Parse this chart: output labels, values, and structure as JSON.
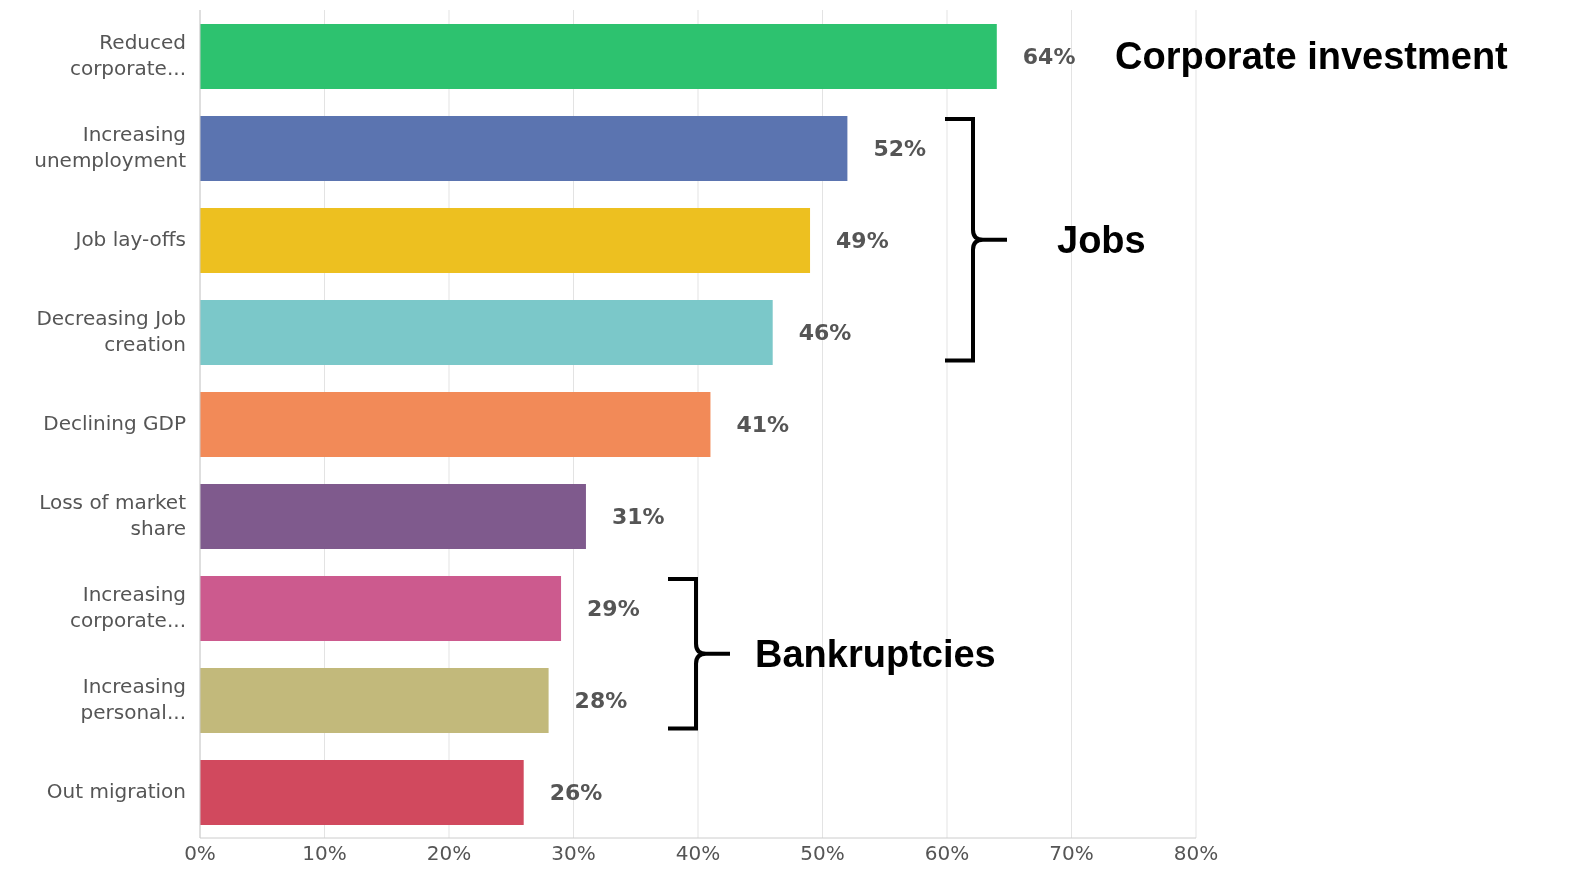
{
  "chart_data": {
    "type": "bar",
    "orientation": "horizontal",
    "categories": [
      "Reduced corporate...",
      "Increasing unemployment",
      "Job lay-offs",
      "Decreasing Job creation",
      "Declining GDP",
      "Loss of market share",
      "Increasing corporate...",
      "Increasing personal...",
      "Out migration"
    ],
    "values": [
      64,
      52,
      49,
      46,
      41,
      31,
      29,
      28,
      26
    ],
    "colors": [
      "#2dc26f",
      "#5b74b0",
      "#edc020",
      "#7bc8c9",
      "#f28a58",
      "#7f5a8d",
      "#cc5a8e",
      "#c2b97b",
      "#d1495e"
    ],
    "value_labels": [
      "64%",
      "52%",
      "49%",
      "46%",
      "41%",
      "31%",
      "29%",
      "28%",
      "26%"
    ],
    "xlim": [
      0,
      80
    ],
    "xticks": [
      {
        "value": 0,
        "label": "0%"
      },
      {
        "value": 10,
        "label": "10%"
      },
      {
        "value": 20,
        "label": "20%"
      },
      {
        "value": 30,
        "label": "30%"
      },
      {
        "value": 40,
        "label": "40%"
      },
      {
        "value": 50,
        "label": "50%"
      },
      {
        "value": 60,
        "label": "60%"
      },
      {
        "value": 70,
        "label": "70%"
      },
      {
        "value": 80,
        "label": "80%"
      }
    ],
    "grid": "x",
    "annotations": [
      "Corporate investment",
      "Jobs",
      "Bankruptcies"
    ]
  }
}
